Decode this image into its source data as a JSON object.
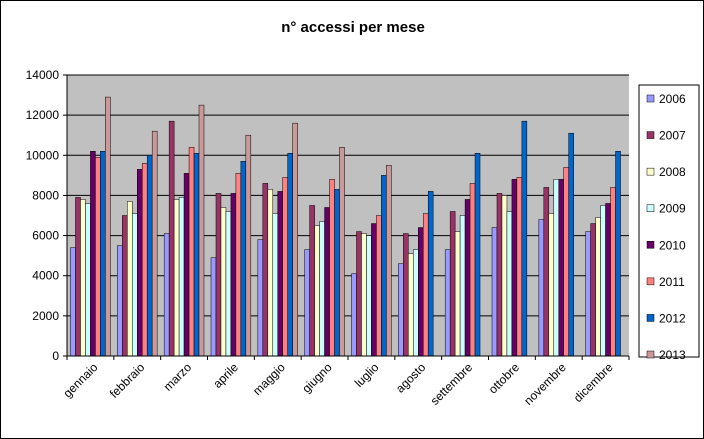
{
  "chart_data": {
    "type": "bar",
    "title": "n° accessi per mese",
    "xlabel": "",
    "ylabel": "",
    "ylim": [
      0,
      14000
    ],
    "yticks": [
      0,
      2000,
      4000,
      6000,
      8000,
      10000,
      12000,
      14000
    ],
    "grid": true,
    "legend_position": "right",
    "categories": [
      "gennaio",
      "febbraio",
      "marzo",
      "aprile",
      "maggio",
      "giugno",
      "luglio",
      "agosto",
      "settembre",
      "ottobre",
      "novembre",
      "dicembre"
    ],
    "series": [
      {
        "name": "2006",
        "color": "#9999ff",
        "values": [
          5400,
          5500,
          6100,
          4900,
          5800,
          5300,
          4100,
          4600,
          5300,
          6400,
          6800,
          6200
        ]
      },
      {
        "name": "2007",
        "color": "#993366",
        "values": [
          7900,
          7000,
          11700,
          8100,
          8600,
          7500,
          6200,
          6100,
          7200,
          8100,
          8400,
          6600
        ]
      },
      {
        "name": "2008",
        "color": "#ffffcc",
        "values": [
          7800,
          7700,
          7800,
          7400,
          8300,
          6500,
          6100,
          5100,
          6200,
          8000,
          7100,
          6900
        ]
      },
      {
        "name": "2009",
        "color": "#ccffff",
        "values": [
          7600,
          7100,
          7900,
          7200,
          7100,
          6700,
          6000,
          5300,
          7000,
          7200,
          8800,
          7500
        ]
      },
      {
        "name": "2010",
        "color": "#660066",
        "values": [
          10200,
          9300,
          9100,
          8100,
          8200,
          7400,
          6600,
          6400,
          7800,
          8800,
          8800,
          7600
        ]
      },
      {
        "name": "2011",
        "color": "#ff8080",
        "values": [
          9900,
          9600,
          10400,
          9100,
          8900,
          8800,
          7000,
          7100,
          8600,
          8900,
          9400,
          8400
        ]
      },
      {
        "name": "2012",
        "color": "#0066cc",
        "values": [
          10200,
          10000,
          10100,
          9700,
          10100,
          8300,
          9000,
          8200,
          10100,
          11700,
          11100,
          10200
        ]
      },
      {
        "name": "2013",
        "color": "#cc9999",
        "values": [
          12900,
          11200,
          12500,
          11000,
          11600,
          10400,
          9500,
          null,
          null,
          null,
          null,
          null
        ]
      }
    ]
  }
}
